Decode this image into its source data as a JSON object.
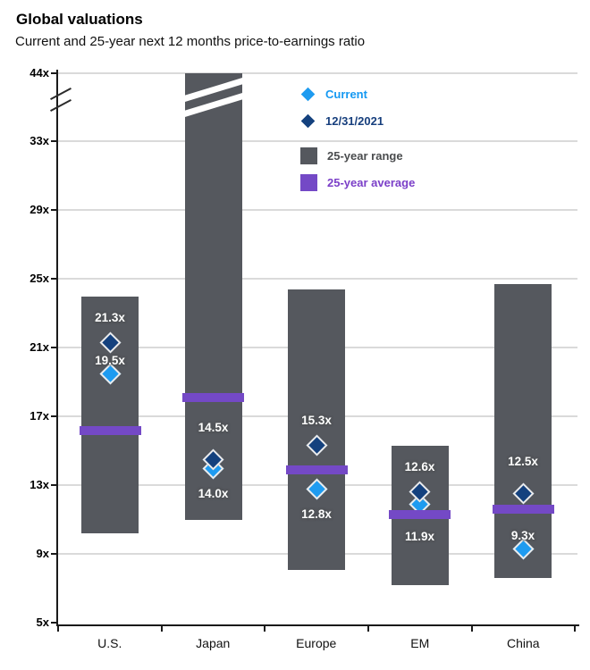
{
  "title": "Global valuations",
  "subtitle": "Current and 25-year next 12 months price-to-earnings ratio",
  "legend": {
    "current_label": "Current",
    "dec_label": "12/31/2021",
    "range_label": "25-year range",
    "average_label": "25-year average"
  },
  "colors": {
    "current": "#1E9BF0",
    "current_text": "#1599F2",
    "dec2021": "#14417E",
    "dec2021_text": "#173F7D",
    "range": "#55585E",
    "range_text": "#4A4C4E",
    "average": "#7449C6",
    "average_text": "#7B3FC8",
    "gridline": "#DADADA",
    "axis": "#1A1A1A"
  },
  "chart_data": {
    "type": "bar",
    "variant": "floating-range-bars-with-diamond-markers",
    "title": "Global valuations",
    "subtitle": "Current and 25-year next 12 months price-to-earnings ratio",
    "categories": [
      "U.S.",
      "Japan",
      "Europe",
      "EM",
      "China"
    ],
    "y_unit": "x (price-to-earnings multiple)",
    "y_tick_values": [
      44,
      33,
      29,
      25,
      21,
      17,
      13,
      9,
      5
    ],
    "y_tick_labels": [
      "44x",
      "33x",
      "29x",
      "25x",
      "21x",
      "17x",
      "13x",
      "9x",
      "5x"
    ],
    "axis_break_between": [
      33,
      44
    ],
    "grid": true,
    "legend_position": "top-right-inside",
    "series": [
      {
        "name": "Current",
        "marker": "diamond",
        "values": [
          19.5,
          14.0,
          12.8,
          11.9,
          9.3
        ],
        "labels": [
          "19.5x",
          "14.0x",
          "12.8x",
          "11.9x",
          "9.3x"
        ]
      },
      {
        "name": "12/31/2021",
        "marker": "diamond",
        "values": [
          21.3,
          14.5,
          15.3,
          12.6,
          12.5
        ],
        "labels": [
          "21.3x",
          "14.5x",
          "15.3x",
          "12.6x",
          "12.5x"
        ]
      },
      {
        "name": "25-year range",
        "marker": "bar",
        "low": [
          10.2,
          11.0,
          8.1,
          7.2,
          7.6
        ],
        "high": [
          24.0,
          44,
          24.4,
          15.3,
          24.7
        ],
        "high_clipped": [
          false,
          true,
          false,
          false,
          false
        ]
      },
      {
        "name": "25-year average",
        "marker": "band",
        "estimated": true,
        "values": [
          16.2,
          18.1,
          13.9,
          11.3,
          11.6
        ]
      }
    ],
    "label_placement": {
      "current": [
        "above_tight",
        "below",
        "below",
        "below_far",
        "above_tight"
      ],
      "dec": [
        "above",
        "above_far",
        "above",
        "above",
        "above_far"
      ]
    }
  }
}
